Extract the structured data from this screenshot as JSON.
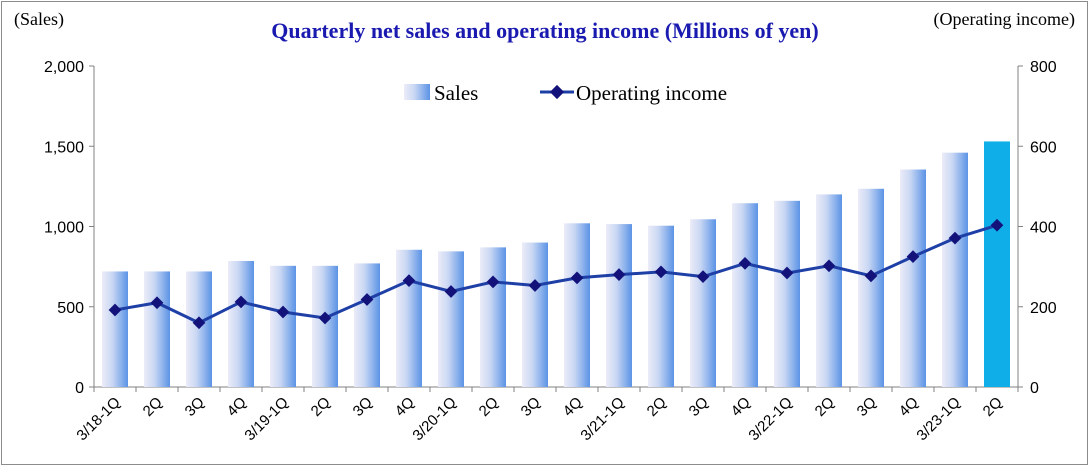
{
  "chart_data": {
    "type": "bar",
    "title": "Quarterly net sales and operating income (Millions of yen)",
    "left_axis_label": "(Sales)",
    "right_axis_label": "(Operating income)",
    "categories": [
      "3/18-1Q",
      "2Q",
      "3Q",
      "4Q",
      "3/19-1Q",
      "2Q",
      "3Q",
      "4Q",
      "3/20-1Q",
      "2Q",
      "3Q",
      "4Q",
      "3/21-1Q",
      "2Q",
      "3Q",
      "4Q",
      "3/22-1Q",
      "2Q",
      "3Q",
      "4Q",
      "3/23-1Q",
      "2Q"
    ],
    "series": [
      {
        "name": "Sales",
        "type": "bar",
        "axis": "left",
        "values": [
          720,
          720,
          720,
          785,
          755,
          755,
          770,
          855,
          845,
          870,
          900,
          1020,
          1015,
          1005,
          1045,
          1145,
          1160,
          1200,
          1235,
          1355,
          1460,
          1530
        ],
        "highlight_last": true
      },
      {
        "name": "Operating income",
        "type": "line",
        "axis": "right",
        "values": [
          192,
          210,
          160,
          212,
          187,
          172,
          218,
          265,
          238,
          262,
          253,
          272,
          280,
          287,
          275,
          308,
          284,
          302,
          277,
          325,
          371,
          403
        ]
      }
    ],
    "y_left": {
      "range": [
        0,
        2000
      ],
      "ticks": [
        "0",
        "500",
        "1,000",
        "1,500",
        "2,000"
      ]
    },
    "y_right": {
      "range": [
        0,
        800
      ],
      "ticks": [
        "0",
        "200",
        "400",
        "600",
        "800"
      ]
    },
    "legend": {
      "position": "top-center",
      "labels": [
        "Sales",
        "Operating income"
      ]
    },
    "grid": false,
    "colors": {
      "title": "#1a1ab0",
      "bar_light": "#eaeaf6",
      "bar_dark": "#5b93e6",
      "bar_highlight": "#10aee8",
      "line": "#1e3fa6",
      "marker": "#12127a"
    }
  }
}
